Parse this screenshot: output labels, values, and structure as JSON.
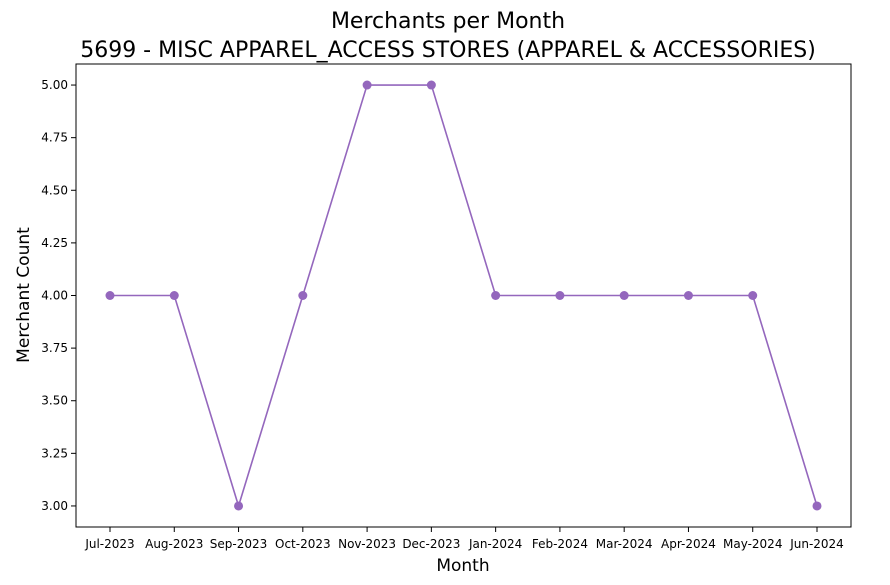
{
  "chart_data": {
    "type": "line",
    "title": "Merchants per Month",
    "subtitle": "5699 - MISC APPAREL_ACCESS STORES (APPAREL & ACCESSORIES)",
    "xlabel": "Month",
    "ylabel": "Merchant Count",
    "categories": [
      "Jul-2023",
      "Aug-2023",
      "Sep-2023",
      "Oct-2023",
      "Nov-2023",
      "Dec-2023",
      "Jan-2024",
      "Feb-2024",
      "Mar-2024",
      "Apr-2024",
      "May-2024",
      "Jun-2024"
    ],
    "values": [
      4,
      4,
      3,
      4,
      5,
      5,
      4,
      4,
      4,
      4,
      4,
      3
    ],
    "y_ticks": [
      "3.00",
      "3.25",
      "3.50",
      "3.75",
      "4.00",
      "4.25",
      "4.50",
      "4.75",
      "5.00"
    ],
    "ylim": [
      2.9,
      5.1
    ],
    "grid": false,
    "legend": "none",
    "line_color": "#9467bd",
    "marker": "circle"
  }
}
